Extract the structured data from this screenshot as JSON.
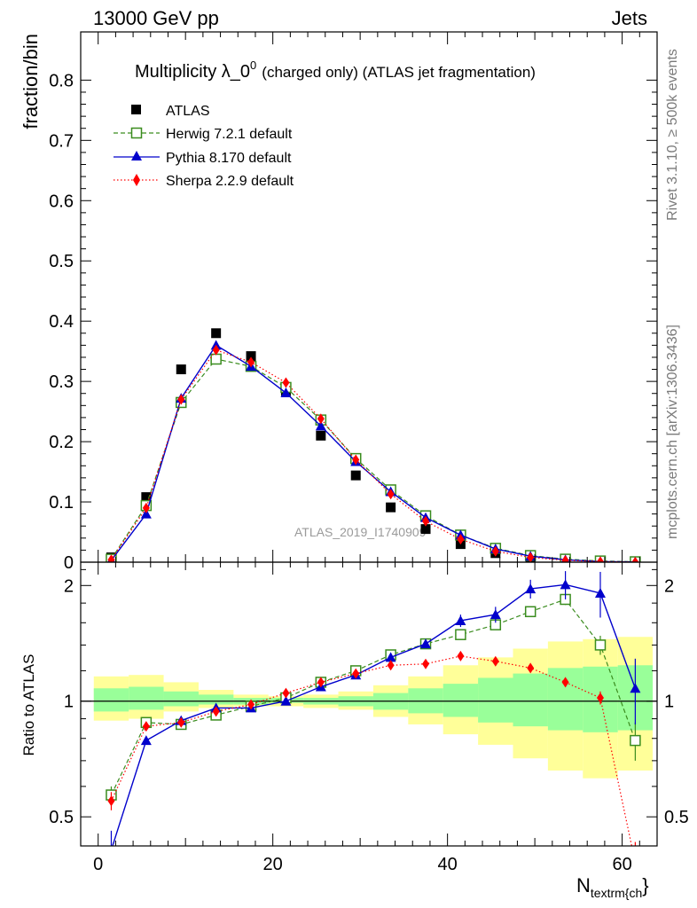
{
  "header": {
    "left": "13000 GeV pp",
    "right": "Jets"
  },
  "side_text": {
    "top": "Rivet 3.1.10, ≥ 500k events",
    "bottom": "mcplots.cern.ch [arXiv:1306.3436]"
  },
  "watermark": "ATLAS_2019_I1740909",
  "colors": {
    "atlas": "#000000",
    "herwig": "#3a8c1e",
    "pythia": "#0000cc",
    "sherpa": "#ff0000",
    "band_outer": "#ffff99",
    "band_inner": "#99ff99"
  },
  "chart_data": [
    {
      "type": "line",
      "title_main": "Multiplicity λ_0",
      "title_sup": "0",
      "title_rest": "(charged only) (ATLAS jet fragmentation)",
      "ylabel": "fraction/bin",
      "xlim": [
        -2,
        64
      ],
      "ylim": [
        0,
        0.88
      ],
      "yticks": [
        "0",
        "0.1",
        "0.2",
        "0.3",
        "0.4",
        "0.5",
        "0.6",
        "0.7",
        "0.8"
      ],
      "legend_position": "top-left",
      "x": [
        1.5,
        5.5,
        9.5,
        13.5,
        17.5,
        21.5,
        25.5,
        29.5,
        33.5,
        37.5,
        41.5,
        45.5,
        49.5,
        53.5,
        57.5,
        61.5
      ],
      "series": [
        {
          "name": "ATLAS",
          "marker": "square",
          "values": [
            0.008,
            0.108,
            0.32,
            0.38,
            0.342,
            0.284,
            0.21,
            0.144,
            0.091,
            0.055,
            0.03,
            0.015,
            0.006,
            0.003,
            0.001,
            0.0005
          ]
        },
        {
          "name": "Herwig 7.2.1 default",
          "marker": "open-square",
          "values": [
            0.005,
            0.094,
            0.265,
            0.337,
            0.325,
            0.29,
            0.236,
            0.172,
            0.12,
            0.077,
            0.045,
            0.023,
            0.011,
            0.005,
            0.002,
            0.0007
          ]
        },
        {
          "name": "Pythia 8.170 default",
          "marker": "triangle",
          "values": [
            0.003,
            0.08,
            0.272,
            0.36,
            0.325,
            0.281,
            0.226,
            0.167,
            0.117,
            0.074,
            0.045,
            0.022,
            0.01,
            0.004,
            0.001,
            0.0004
          ]
        },
        {
          "name": "Sherpa 2.2.9 default",
          "marker": "diamond",
          "values": [
            0.004,
            0.09,
            0.27,
            0.352,
            0.332,
            0.298,
            0.238,
            0.17,
            0.113,
            0.068,
            0.038,
            0.018,
            0.008,
            0.003,
            0.001,
            0.0002
          ]
        }
      ]
    },
    {
      "type": "line",
      "ylabel": "Ratio to ATLAS",
      "xlabel": "N",
      "xlabel_sub": "textrm{ch",
      "xlabel_end": "}",
      "xlim": [
        -2,
        64
      ],
      "ylim": [
        0.42,
        2.3
      ],
      "yscale": "log",
      "xticks": [
        "0",
        "20",
        "40",
        "60"
      ],
      "yticks": [
        "0.5",
        "1",
        "2"
      ],
      "x": [
        1.5,
        5.5,
        9.5,
        13.5,
        17.5,
        21.5,
        25.5,
        29.5,
        33.5,
        37.5,
        41.5,
        45.5,
        49.5,
        53.5,
        57.5,
        61.5
      ],
      "band_outer": {
        "lo": [
          0.89,
          0.9,
          0.94,
          0.96,
          0.97,
          0.97,
          0.96,
          0.95,
          0.91,
          0.87,
          0.82,
          0.77,
          0.71,
          0.66,
          0.63,
          0.66
        ],
        "hi": [
          1.16,
          1.17,
          1.12,
          1.07,
          1.04,
          1.03,
          1.04,
          1.06,
          1.1,
          1.16,
          1.24,
          1.3,
          1.37,
          1.43,
          1.45,
          1.47
        ]
      },
      "band_inner": {
        "lo": [
          0.94,
          0.95,
          0.97,
          0.98,
          0.98,
          0.99,
          0.98,
          0.97,
          0.95,
          0.93,
          0.91,
          0.88,
          0.86,
          0.84,
          0.83,
          0.84
        ],
        "hi": [
          1.08,
          1.09,
          1.06,
          1.04,
          1.02,
          1.02,
          1.02,
          1.03,
          1.05,
          1.08,
          1.11,
          1.15,
          1.18,
          1.22,
          1.23,
          1.24
        ]
      },
      "series": [
        {
          "name": "Herwig 7.2.1 default",
          "values": [
            0.57,
            0.88,
            0.87,
            0.92,
            0.97,
            1.02,
            1.12,
            1.2,
            1.32,
            1.41,
            1.49,
            1.58,
            1.71,
            1.84,
            1.4,
            0.79
          ],
          "err": [
            0.03,
            0.01,
            0.01,
            0.01,
            0.01,
            0.01,
            0.01,
            0.01,
            0.02,
            0.02,
            0.03,
            0.03,
            0.04,
            0.06,
            0.08,
            0.09
          ]
        },
        {
          "name": "Pythia 8.170 default",
          "values": [
            0.41,
            0.79,
            0.89,
            0.96,
            0.96,
            1.0,
            1.09,
            1.17,
            1.3,
            1.41,
            1.62,
            1.68,
            1.96,
            2.01,
            1.91,
            1.08
          ],
          "err": [
            0.05,
            0.01,
            0.01,
            0.01,
            0.01,
            0.01,
            0.01,
            0.01,
            0.02,
            0.03,
            0.06,
            0.08,
            0.11,
            0.17,
            0.26,
            0.21
          ]
        },
        {
          "name": "Sherpa 2.2.9 default",
          "values": [
            0.55,
            0.86,
            0.88,
            0.94,
            0.98,
            1.05,
            1.12,
            1.18,
            1.24,
            1.25,
            1.31,
            1.27,
            1.22,
            1.12,
            1.02,
            0.38
          ],
          "err": [
            0.03,
            0.01,
            0.01,
            0.01,
            0.01,
            0.01,
            0.01,
            0.01,
            0.01,
            0.02,
            0.02,
            0.02,
            0.03,
            0.03,
            0.04,
            0.05
          ]
        }
      ]
    }
  ]
}
